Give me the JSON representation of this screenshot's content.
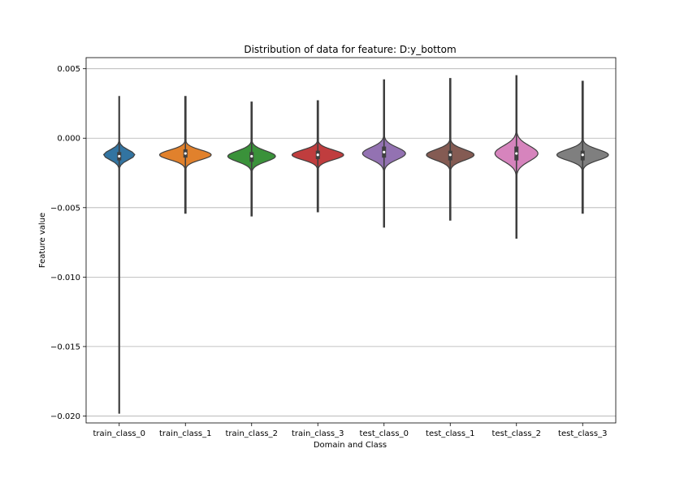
{
  "chart_data": {
    "type": "violin",
    "title": "Distribution of data for feature: D:y_bottom",
    "xlabel": "Domain and Class",
    "ylabel": "Feature value",
    "ylim": [
      -0.0205,
      0.0058
    ],
    "yticks": [
      0.005,
      0.0,
      -0.005,
      -0.01,
      -0.015,
      -0.02
    ],
    "ytick_labels": [
      "0.005",
      "0.000",
      "−0.005",
      "−0.010",
      "−0.015",
      "−0.020"
    ],
    "grid": "y",
    "categories": [
      "train_class_0",
      "train_class_1",
      "train_class_2",
      "train_class_3",
      "test_class_0",
      "test_class_1",
      "test_class_2",
      "test_class_3"
    ],
    "series": [
      {
        "category": "train_class_0",
        "color": "#3274a1",
        "min": -0.0198,
        "q1": -0.0016,
        "median": -0.0013,
        "q3": -0.001,
        "max": 0.003,
        "mode": -0.0012,
        "halfwidth": 0.47
      },
      {
        "category": "train_class_1",
        "color": "#e1812c",
        "min": -0.0054,
        "q1": -0.0014,
        "median": -0.0011,
        "q3": -0.0008,
        "max": 0.003,
        "mode": -0.0012,
        "halfwidth": 0.78
      },
      {
        "category": "train_class_2",
        "color": "#3a923a",
        "min": -0.0056,
        "q1": -0.0017,
        "median": -0.0013,
        "q3": -0.001,
        "max": 0.0026,
        "mode": -0.0013,
        "halfwidth": 0.72
      },
      {
        "category": "train_class_3",
        "color": "#c03d3e",
        "min": -0.0053,
        "q1": -0.0015,
        "median": -0.0012,
        "q3": -0.0009,
        "max": 0.0027,
        "mode": -0.0012,
        "halfwidth": 0.78
      },
      {
        "category": "test_class_0",
        "color": "#9372b2",
        "min": -0.0064,
        "q1": -0.0014,
        "median": -0.001,
        "q3": -0.0006,
        "max": 0.0042,
        "mode": -0.0011,
        "halfwidth": 0.65
      },
      {
        "category": "test_class_1",
        "color": "#845b53",
        "min": -0.0059,
        "q1": -0.0016,
        "median": -0.0012,
        "q3": -0.0009,
        "max": 0.0043,
        "mode": -0.0012,
        "halfwidth": 0.72
      },
      {
        "category": "test_class_2",
        "color": "#d684bd",
        "min": -0.0072,
        "q1": -0.0016,
        "median": -0.0011,
        "q3": -0.0006,
        "max": 0.0045,
        "mode": -0.0011,
        "halfwidth": 0.65
      },
      {
        "category": "test_class_3",
        "color": "#7f7f7f",
        "min": -0.0054,
        "q1": -0.0016,
        "median": -0.0012,
        "q3": -0.0009,
        "max": 0.0041,
        "mode": -0.0012,
        "halfwidth": 0.78
      }
    ]
  }
}
